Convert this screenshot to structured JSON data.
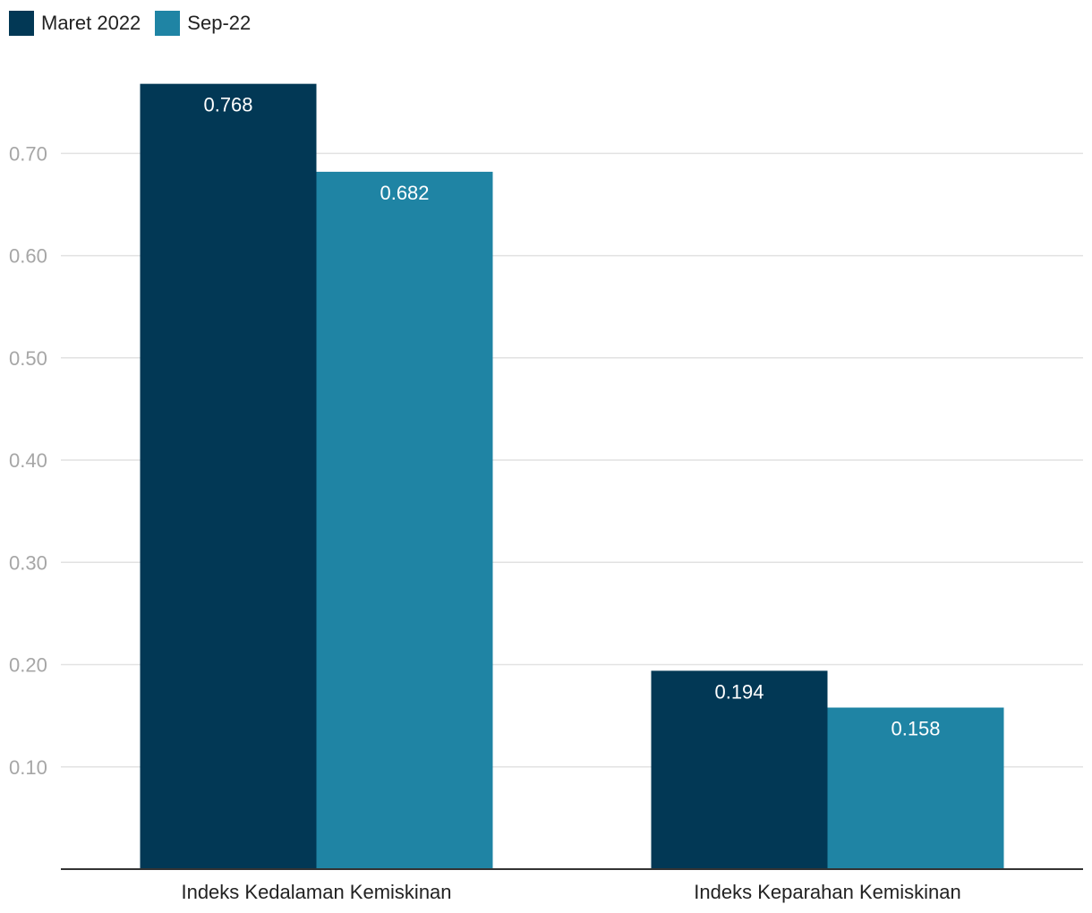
{
  "chart_data": {
    "type": "bar",
    "categories": [
      "Indeks Kedalaman Kemiskinan",
      "Indeks Keparahan Kemiskinan"
    ],
    "series": [
      {
        "name": "Maret 2022",
        "values": [
          0.768,
          0.194
        ],
        "labels": [
          "0.768",
          "0.194"
        ],
        "color": "#023855"
      },
      {
        "name": "Sep-22",
        "values": [
          0.682,
          0.158
        ],
        "labels": [
          "0.682",
          "0.158"
        ],
        "color": "#1f84a4"
      }
    ],
    "ylim": [
      0,
      0.7747
    ],
    "yticks": [
      "0.10",
      "0.20",
      "0.30",
      "0.40",
      "0.50",
      "0.60",
      "0.70"
    ],
    "ytick_values": [
      0.1,
      0.2,
      0.3,
      0.4,
      0.5,
      0.6,
      0.7
    ],
    "grid": true,
    "legend": "top-left"
  },
  "colors": {
    "grid": "#e2e2e2",
    "axis": "#333333",
    "tick_label": "#a6a6a6",
    "category_label": "#222222",
    "data_label": "#ffffff"
  }
}
